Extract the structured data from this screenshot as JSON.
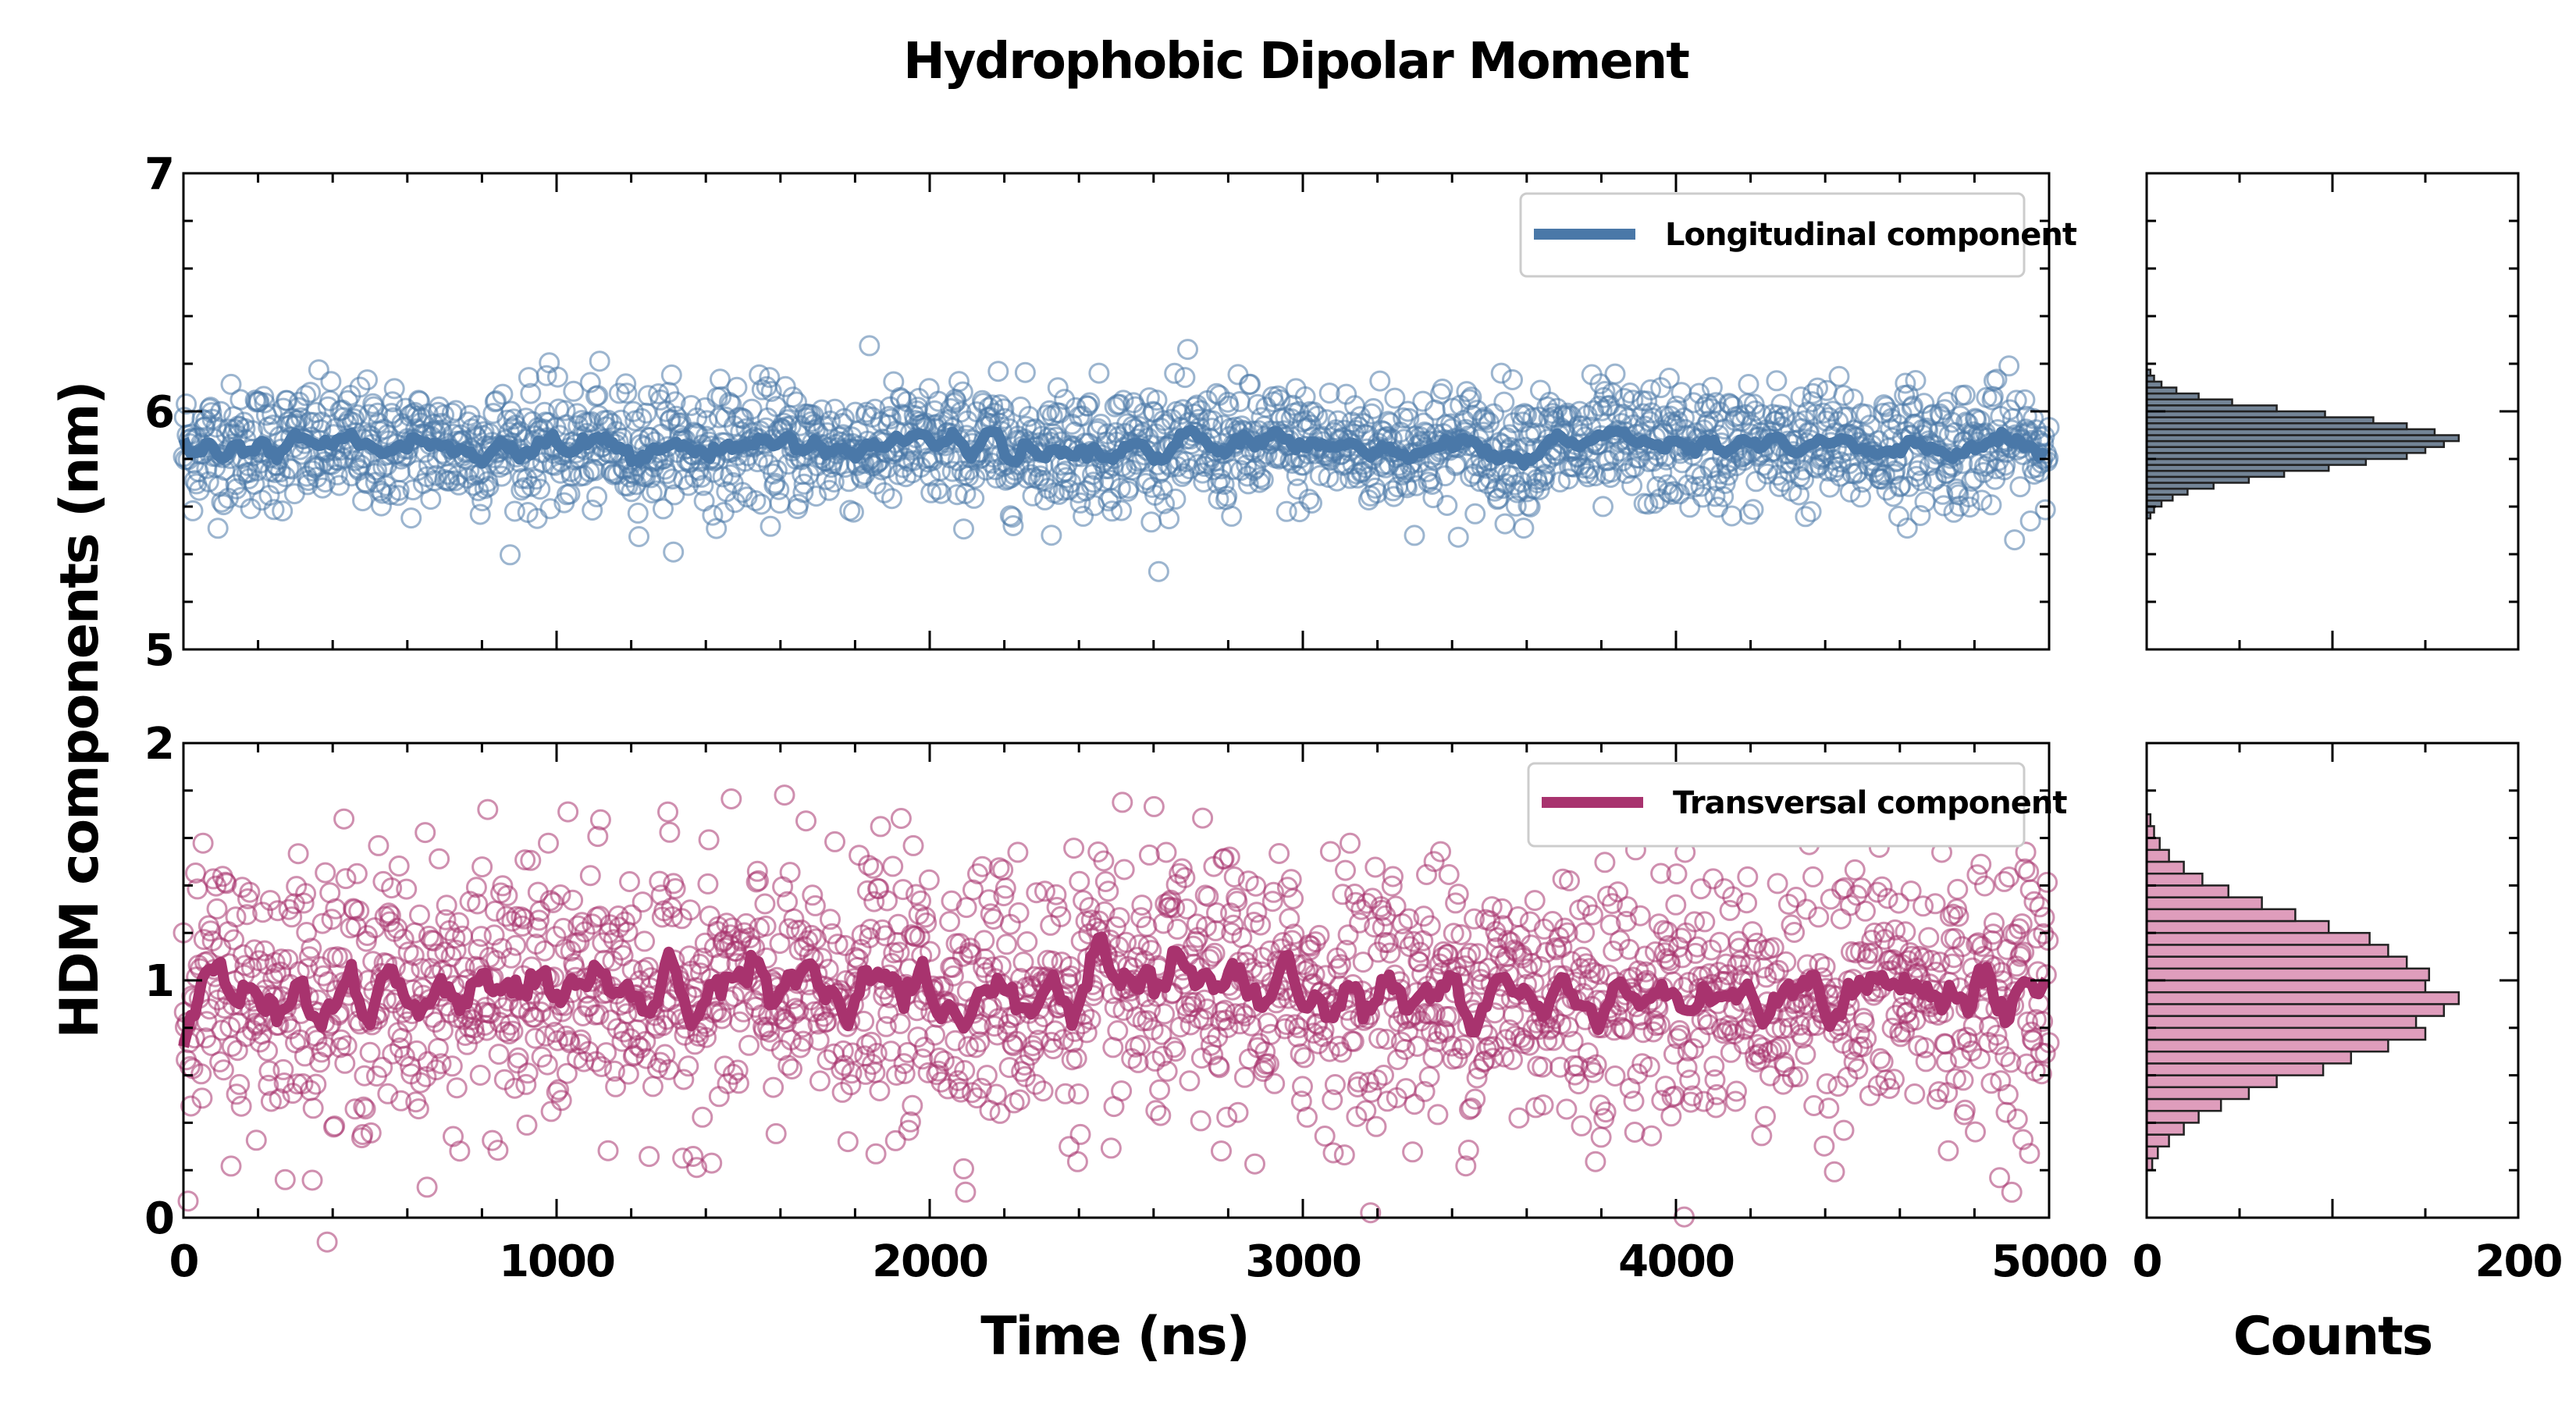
{
  "chart_data": [
    {
      "type": "scatter",
      "panel": "top-time-series",
      "title": "Hydrophobic Dipolar Moment",
      "xlabel": "Time (ns)",
      "ylabel": "HDM components (nm)",
      "xlim": [
        0,
        5000
      ],
      "ylim": [
        5,
        7
      ],
      "x_ticks": [
        "0",
        "1000",
        "2000",
        "3000",
        "4000",
        "5000"
      ],
      "y_ticks": [
        "5",
        "6",
        "7"
      ],
      "legend_placement": "top-right",
      "series": [
        {
          "name": "Longitudinal component",
          "color": "#4a78a8",
          "marker": "open-circle",
          "mean": 5.85,
          "std": 0.13,
          "count": 2000
        }
      ],
      "running_average": {
        "color": "#4a78a8",
        "mean": 5.85,
        "range": [
          5.75,
          5.98
        ]
      }
    },
    {
      "type": "scatter",
      "panel": "bottom-time-series",
      "xlabel": "Time (ns)",
      "xlim": [
        0,
        5000
      ],
      "ylim": [
        0,
        2
      ],
      "x_ticks": [
        "0",
        "1000",
        "2000",
        "3000",
        "4000",
        "5000"
      ],
      "y_ticks": [
        "0",
        "1",
        "2"
      ],
      "legend_placement": "top-right",
      "series": [
        {
          "name": "Transversal component",
          "color": "#a8336e",
          "marker": "open-circle",
          "mean": 0.95,
          "std": 0.28,
          "count": 2000
        }
      ],
      "running_average": {
        "color": "#a8336e",
        "mean": 0.95,
        "range": [
          0.65,
          1.28
        ]
      }
    },
    {
      "type": "bar",
      "panel": "top-histogram",
      "orientation": "horizontal",
      "xlabel": "Counts",
      "xlim": [
        0,
        200
      ],
      "ylim": [
        5,
        7
      ],
      "bin_width": 0.025,
      "bins": [
        [
          5.55,
          2
        ],
        [
          5.575,
          4
        ],
        [
          5.6,
          8
        ],
        [
          5.625,
          14
        ],
        [
          5.65,
          22
        ],
        [
          5.675,
          36
        ],
        [
          5.7,
          55
        ],
        [
          5.725,
          74
        ],
        [
          5.75,
          98
        ],
        [
          5.775,
          118
        ],
        [
          5.8,
          140
        ],
        [
          5.825,
          150
        ],
        [
          5.85,
          160
        ],
        [
          5.875,
          168
        ],
        [
          5.9,
          155
        ],
        [
          5.925,
          140
        ],
        [
          5.95,
          122
        ],
        [
          5.975,
          96
        ],
        [
          6.0,
          70
        ],
        [
          6.025,
          46
        ],
        [
          6.05,
          28
        ],
        [
          6.075,
          16
        ],
        [
          6.1,
          8
        ],
        [
          6.125,
          4
        ],
        [
          6.15,
          2
        ]
      ],
      "color": "#4a78a8"
    },
    {
      "type": "bar",
      "panel": "bottom-histogram",
      "orientation": "horizontal",
      "xlabel": "Counts",
      "xlim": [
        0,
        200
      ],
      "ylim": [
        0,
        2
      ],
      "x_ticks": [
        "0",
        "200"
      ],
      "bin_width": 0.05,
      "bins": [
        [
          0.2,
          3
        ],
        [
          0.25,
          6
        ],
        [
          0.3,
          12
        ],
        [
          0.35,
          20
        ],
        [
          0.4,
          28
        ],
        [
          0.45,
          40
        ],
        [
          0.5,
          55
        ],
        [
          0.55,
          70
        ],
        [
          0.6,
          95
        ],
        [
          0.65,
          110
        ],
        [
          0.7,
          130
        ],
        [
          0.75,
          150
        ],
        [
          0.8,
          145
        ],
        [
          0.85,
          160
        ],
        [
          0.9,
          168
        ],
        [
          0.95,
          150
        ],
        [
          1.0,
          152
        ],
        [
          1.05,
          140
        ],
        [
          1.1,
          130
        ],
        [
          1.15,
          120
        ],
        [
          1.2,
          98
        ],
        [
          1.25,
          80
        ],
        [
          1.3,
          62
        ],
        [
          1.35,
          44
        ],
        [
          1.4,
          30
        ],
        [
          1.45,
          20
        ],
        [
          1.5,
          12
        ],
        [
          1.55,
          7
        ],
        [
          1.6,
          4
        ],
        [
          1.65,
          2
        ]
      ],
      "color": "#d98cb0"
    }
  ]
}
